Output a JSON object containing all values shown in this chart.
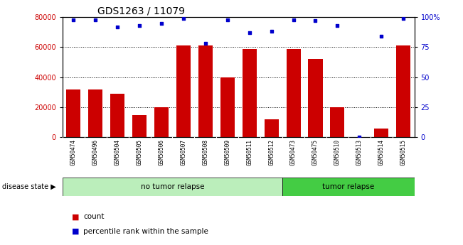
{
  "title": "GDS1263 / 11079",
  "samples": [
    "GSM50474",
    "GSM50496",
    "GSM50504",
    "GSM50505",
    "GSM50506",
    "GSM50507",
    "GSM50508",
    "GSM50509",
    "GSM50511",
    "GSM50512",
    "GSM50473",
    "GSM50475",
    "GSM50510",
    "GSM50513",
    "GSM50514",
    "GSM50515"
  ],
  "counts": [
    32000,
    32000,
    29000,
    15000,
    20000,
    61000,
    61000,
    40000,
    59000,
    12000,
    59000,
    52000,
    20000,
    0,
    6000,
    61000
  ],
  "percentiles": [
    98,
    98,
    92,
    93,
    95,
    99,
    78,
    98,
    87,
    88,
    98,
    97,
    93,
    0,
    84,
    99
  ],
  "group1_label": "no tumor relapse",
  "group2_label": "tumor relapse",
  "group1_count": 10,
  "group2_count": 6,
  "disease_state_label": "disease state",
  "legend_count": "count",
  "legend_percentile": "percentile rank within the sample",
  "ylim_left": [
    0,
    80000
  ],
  "ylim_right": [
    0,
    100
  ],
  "yticks_left": [
    0,
    20000,
    40000,
    60000,
    80000
  ],
  "yticks_right": [
    0,
    25,
    50,
    75,
    100
  ],
  "bar_color": "#cc0000",
  "scatter_color": "#0000cc",
  "group1_bg": "#bbeebb",
  "group2_bg": "#44cc44",
  "label_bg": "#cccccc",
  "title_fontsize": 10,
  "tick_fontsize": 7,
  "sample_fontsize": 5.5
}
